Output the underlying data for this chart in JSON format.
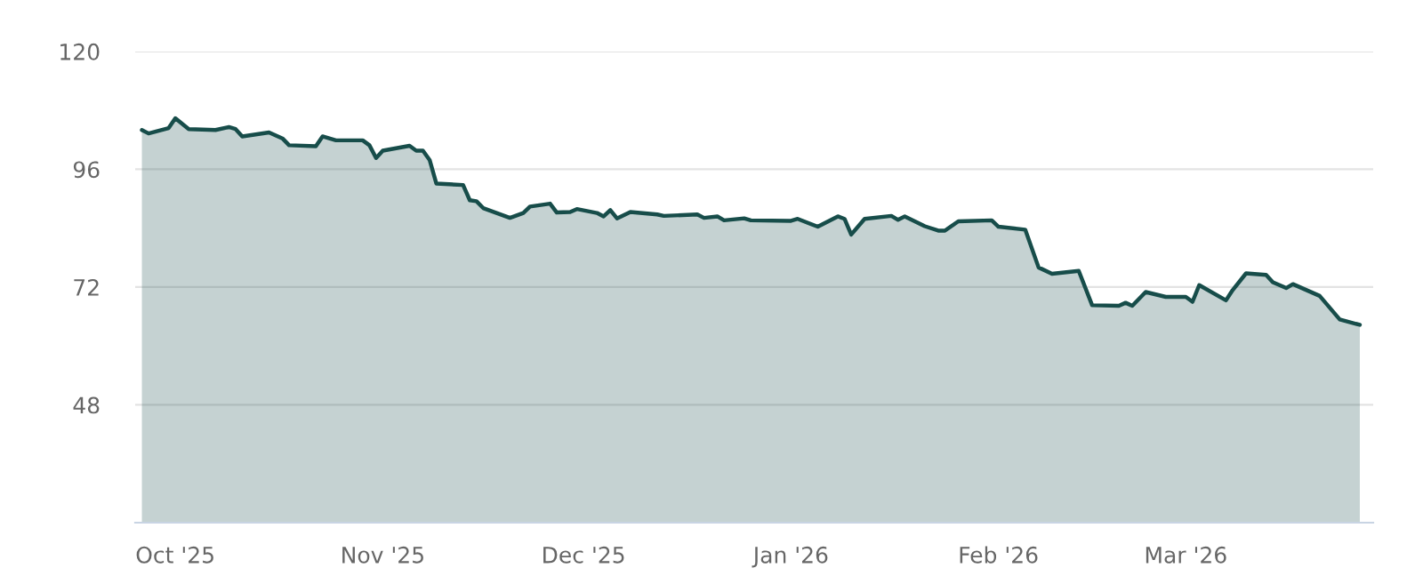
{
  "chart_data": {
    "type": "area",
    "color": "#174d4a",
    "grid": "y",
    "legend": false,
    "x": [
      "2025-09-26",
      "2025-09-27",
      "2025-09-30",
      "2025-10-01",
      "2025-10-03",
      "2025-10-07",
      "2025-10-09",
      "2025-10-10",
      "2025-10-11",
      "2025-10-15",
      "2025-10-17",
      "2025-10-18",
      "2025-10-22",
      "2025-10-23",
      "2025-10-25",
      "2025-10-29",
      "2025-10-30",
      "2025-10-31",
      "2025-11-01",
      "2025-11-05",
      "2025-11-06",
      "2025-11-07",
      "2025-11-08",
      "2025-11-09",
      "2025-11-13",
      "2025-11-14",
      "2025-11-15",
      "2025-11-16",
      "2025-11-20",
      "2025-11-22",
      "2025-11-23",
      "2025-11-26",
      "2025-11-27",
      "2025-11-29",
      "2025-11-30",
      "2025-12-03",
      "2025-12-04",
      "2025-12-05",
      "2025-12-06",
      "2025-12-08",
      "2025-12-12",
      "2025-12-13",
      "2025-12-18",
      "2025-12-19",
      "2025-12-21",
      "2025-12-22",
      "2025-12-25",
      "2025-12-26",
      "2026-01-01",
      "2026-01-02",
      "2026-01-05",
      "2026-01-08",
      "2026-01-09",
      "2026-01-10",
      "2026-01-12",
      "2026-01-16",
      "2026-01-17",
      "2026-01-18",
      "2026-01-21",
      "2026-01-23",
      "2026-01-24",
      "2026-01-26",
      "2026-01-31",
      "2026-02-01",
      "2026-02-05",
      "2026-02-07",
      "2026-02-09",
      "2026-02-13",
      "2026-02-15",
      "2026-02-19",
      "2026-02-20",
      "2026-02-21",
      "2026-02-23",
      "2026-02-26",
      "2026-03-01",
      "2026-03-02",
      "2026-03-03",
      "2026-03-07",
      "2026-03-08",
      "2026-03-10",
      "2026-03-13",
      "2026-03-14",
      "2026-03-16",
      "2026-03-17",
      "2026-03-21",
      "2026-03-24",
      "2026-03-27"
    ],
    "values": [
      104.0,
      103.3,
      104.4,
      106.4,
      104.2,
      104.0,
      104.6,
      104.2,
      102.7,
      103.5,
      102.3,
      100.9,
      100.7,
      102.7,
      101.9,
      101.9,
      100.9,
      98.3,
      99.8,
      100.8,
      99.8,
      99.8,
      97.9,
      93.1,
      92.8,
      89.7,
      89.5,
      88.1,
      86.1,
      87.1,
      88.4,
      89.0,
      87.2,
      87.3,
      87.9,
      87.1,
      86.4,
      87.7,
      86.0,
      87.3,
      86.8,
      86.5,
      86.8,
      86.1,
      86.4,
      85.6,
      86.0,
      85.6,
      85.5,
      85.9,
      84.3,
      86.4,
      85.9,
      82.7,
      85.9,
      86.5,
      85.7,
      86.4,
      84.4,
      83.5,
      83.5,
      85.4,
      85.6,
      84.3,
      83.7,
      76.0,
      74.7,
      75.3,
      68.3,
      68.2,
      68.8,
      68.2,
      71.0,
      70.0,
      70.0,
      69.0,
      72.4,
      69.3,
      71.4,
      74.8,
      74.5,
      73.0,
      71.8,
      72.6,
      70.2,
      65.4,
      64.3
    ],
    "xlim": [
      "2025-09-25",
      "2026-03-29"
    ],
    "xticks": [
      {
        "value": "2025-10-01",
        "label": "Oct '25"
      },
      {
        "value": "2025-11-01",
        "label": "Nov '25"
      },
      {
        "value": "2025-12-01",
        "label": "Dec '25"
      },
      {
        "value": "2026-01-01",
        "label": "Jan '26"
      },
      {
        "value": "2026-02-01",
        "label": "Feb '26"
      },
      {
        "value": "2026-03-01",
        "label": "Mar '26"
      }
    ],
    "ylim": [
      24,
      120
    ],
    "yticks": [
      48,
      72,
      96,
      120
    ]
  }
}
